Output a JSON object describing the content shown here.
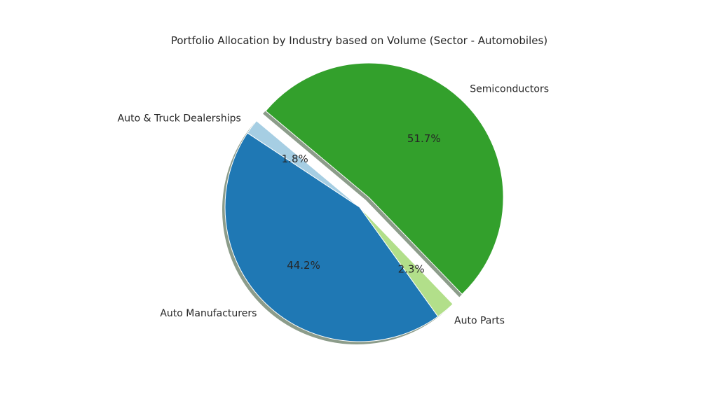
{
  "chart_data": {
    "type": "pie",
    "title": "Portfolio Allocation by Industry based on Volume (Sector - Automobiles)",
    "slices": [
      {
        "label": "Auto & Truck Dealerships",
        "value": 1.8,
        "pct_label": "1.8%",
        "color": "#a6cee3",
        "explode": false
      },
      {
        "label": "Auto Manufacturers",
        "value": 44.2,
        "pct_label": "44.2%",
        "color": "#1f78b4",
        "explode": false
      },
      {
        "label": "Auto Parts",
        "value": 2.3,
        "pct_label": "2.3%",
        "color": "#b2df8a",
        "explode": false
      },
      {
        "label": "Semiconductors",
        "value": 51.7,
        "pct_label": "51.7%",
        "color": "#33a02c",
        "explode": true
      }
    ],
    "shadow": true,
    "legend": "none"
  }
}
